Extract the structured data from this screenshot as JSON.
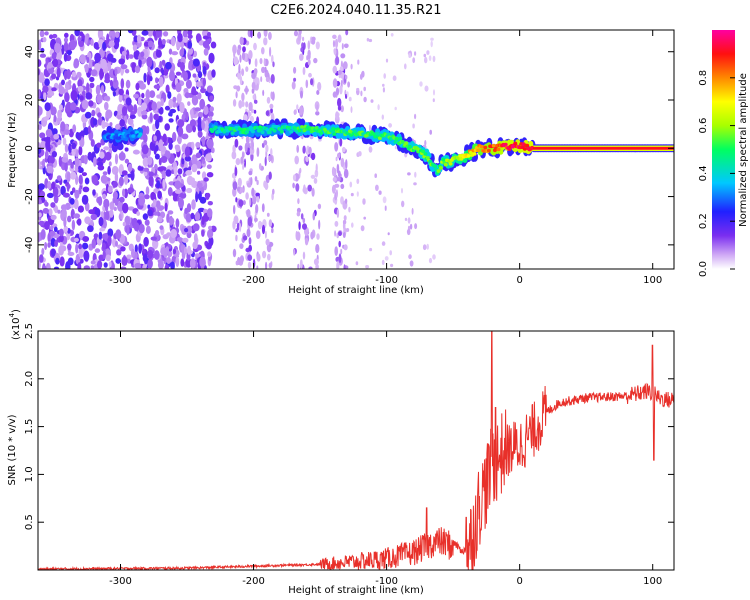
{
  "figure_title": "C2E6.2024.040.11.35.R21",
  "chart_data": [
    {
      "type": "heatmap",
      "title": "C2E6.2024.040.11.35.R21",
      "xlabel": "Height of straight line (km)",
      "ylabel": "Frequency (Hz)",
      "xlim": [
        -362,
        116
      ],
      "ylim": [
        -50,
        49
      ],
      "x_ticks": [
        -300,
        -200,
        -100,
        0,
        100
      ],
      "y_ticks": [
        -40,
        -20,
        0,
        20,
        40
      ],
      "x_tick_labels": [
        "-300",
        "-200",
        "-100",
        "0",
        "100"
      ],
      "y_tick_labels": [
        "-40",
        "-20",
        "0",
        "20",
        "40"
      ],
      "colorbar": {
        "label": "Normalized spectral amplitude",
        "range": [
          0,
          1
        ],
        "ticks": [
          0.0,
          0.2,
          0.4,
          0.6,
          0.8
        ],
        "tick_labels": [
          "0.0",
          "0.2",
          "0.4",
          "0.6",
          "0.8"
        ],
        "colors": [
          "#ffffff",
          "#cfa8f5",
          "#7a2ef0",
          "#2020ff",
          "#00c8ff",
          "#00ff60",
          "#a8ff00",
          "#ffff00",
          "#ff8800",
          "#ff1010",
          "#ff00a0"
        ]
      },
      "ridge": {
        "x": [
          -310,
          -300,
          -290,
          -230,
          -220,
          -200,
          -180,
          -160,
          -140,
          -120,
          -100,
          -90,
          -80,
          -70,
          -62,
          -58,
          -50,
          -40,
          -30,
          -20,
          -10,
          0,
          10,
          50,
          100,
          116
        ],
        "frequency": [
          5,
          5,
          6,
          8,
          7.5,
          7.5,
          8,
          8,
          7,
          6,
          5,
          3,
          0,
          -3,
          -10,
          -6,
          -5,
          -3,
          0,
          0,
          0.5,
          1,
          0,
          0,
          0,
          0
        ],
        "amplitude": [
          0.3,
          0.3,
          0.3,
          0.4,
          0.45,
          0.45,
          0.45,
          0.5,
          0.5,
          0.5,
          0.5,
          0.5,
          0.55,
          0.55,
          0.5,
          0.55,
          0.6,
          0.7,
          0.8,
          0.85,
          0.9,
          0.92,
          0.95,
          0.95,
          0.95,
          0.95
        ]
      },
      "background_noise": {
        "strong_region_x": [
          -362,
          -230
        ],
        "weak_bands_x": [
          [
            -215,
            -185
          ],
          [
            -170,
            -150
          ],
          [
            -140,
            -130
          ]
        ],
        "sparse_region_x": [
          -130,
          -60
        ],
        "clean_region_x": [
          10,
          116
        ]
      }
    },
    {
      "type": "line",
      "xlabel": "Height of straight line (km)",
      "ylabel": "SNR (10 * v/v)",
      "y_multiplier": "(x10",
      "y_multiplier_exp": "4",
      "y_multiplier_close": ")",
      "xlim": [
        -362,
        116
      ],
      "ylim": [
        0,
        2.5
      ],
      "x_ticks": [
        -300,
        -200,
        -100,
        0,
        100
      ],
      "y_ticks": [
        0.5,
        1.0,
        1.5,
        2.0,
        2.5
      ],
      "x_tick_labels": [
        "-300",
        "-200",
        "-100",
        "0",
        "100"
      ],
      "y_tick_labels": [
        "0.5",
        "1.0",
        "1.5",
        "2.0",
        "2.5"
      ],
      "line_color": "#e8302a",
      "series": [
        {
          "x": [
            -362,
            -250,
            -200,
            -150,
            -120,
            -100,
            -80,
            -70,
            -65,
            -60,
            -50,
            -45,
            -40,
            -35,
            -30,
            -25,
            -20,
            -15,
            -10,
            0,
            10,
            20,
            30,
            50,
            80,
            90,
            95,
            100,
            105,
            110,
            116
          ],
          "values": [
            0.01,
            0.02,
            0.04,
            0.06,
            0.09,
            0.12,
            0.18,
            0.25,
            0.28,
            0.3,
            0.25,
            0.18,
            0.15,
            0.4,
            0.7,
            0.9,
            1.1,
            1.2,
            1.25,
            1.3,
            1.45,
            1.65,
            1.75,
            1.8,
            1.82,
            1.85,
            1.87,
            1.85,
            1.8,
            1.78,
            1.78
          ],
          "spikes": [
            {
              "x": -70,
              "value": 0.65
            },
            {
              "x": -40,
              "value": 0.55
            },
            {
              "x": -21,
              "value": 2.5
            },
            {
              "x": -18,
              "value": 1.7
            },
            {
              "x": 100,
              "value": 2.35
            },
            {
              "x": 101,
              "value": 1.15
            }
          ]
        }
      ]
    }
  ]
}
